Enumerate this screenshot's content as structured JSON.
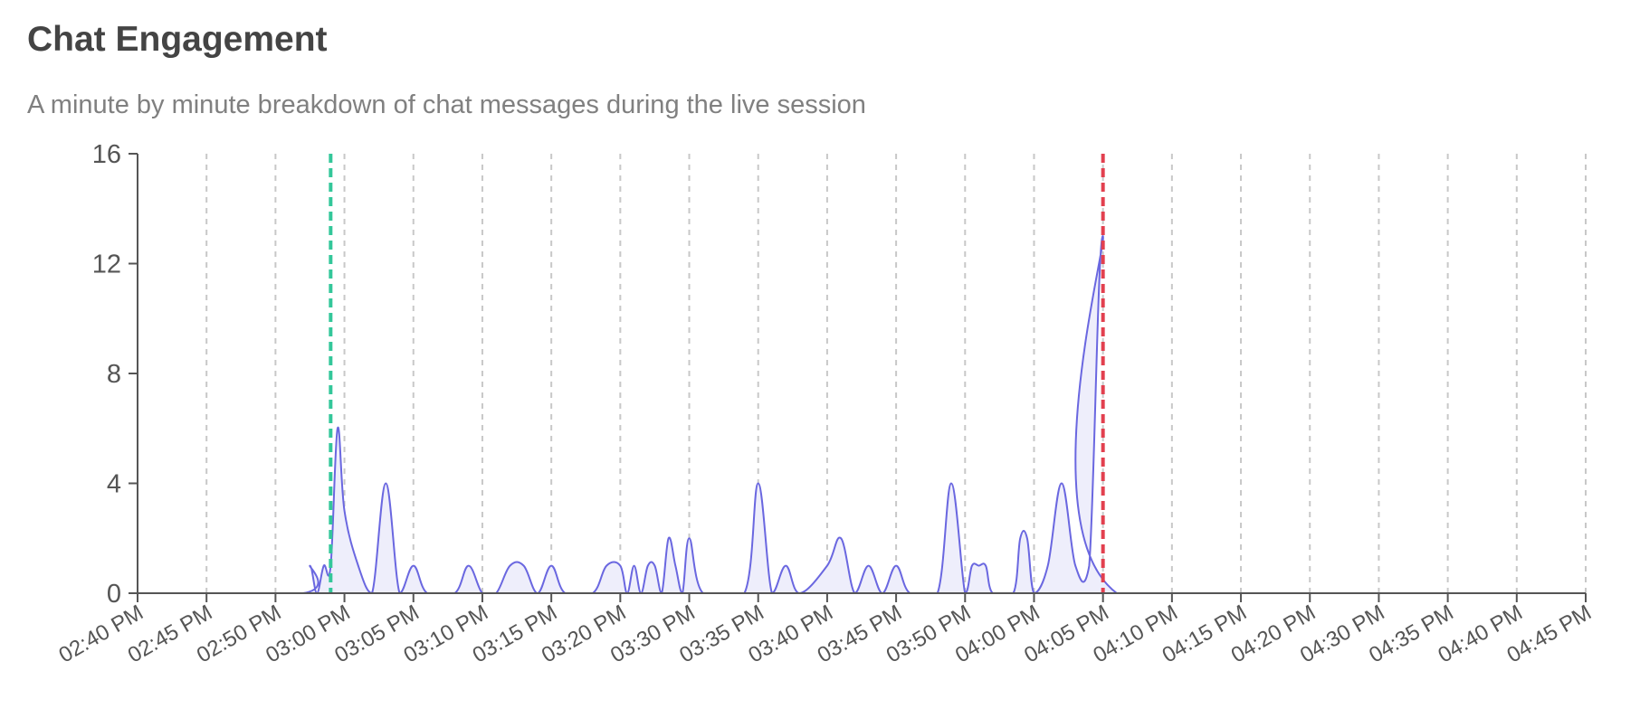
{
  "header": {
    "title": "Chat Engagement",
    "subtitle": "A minute by minute breakdown of chat messages during the live session"
  },
  "colors": {
    "area_line": "#6a67e0",
    "area_fill": "#eeeefb",
    "marker_start": "#34c79a",
    "marker_end": "#e2404f",
    "grid": "#c8c8c8",
    "axis": "#555555"
  },
  "chart_data": {
    "type": "area",
    "title": "",
    "xlabel": "",
    "ylabel": "",
    "x_unit": "minutes",
    "x_range": [
      "02:40 PM",
      "04:45 PM"
    ],
    "ylim": [
      0,
      16
    ],
    "y_ticks": [
      0,
      4,
      8,
      12,
      16
    ],
    "x_ticks": [
      "02:40 PM",
      "02:45 PM",
      "02:50 PM",
      "03:00 PM",
      "03:05 PM",
      "03:10 PM",
      "03:15 PM",
      "03:20 PM",
      "03:30 PM",
      "03:35 PM",
      "03:40 PM",
      "03:45 PM",
      "03:50 PM",
      "04:00 PM",
      "04:05 PM",
      "04:10 PM",
      "04:15 PM",
      "04:20 PM",
      "04:30 PM",
      "04:35 PM",
      "04:40 PM",
      "04:45 PM"
    ],
    "grid": {
      "vertical": true,
      "horizontal": false,
      "style": "dashed"
    },
    "series": [
      {
        "name": "",
        "points": [
          [
            "02:40 PM",
            0
          ],
          [
            "02:54 PM",
            0
          ],
          [
            "02:55 PM",
            1
          ],
          [
            "02:56 PM",
            0
          ],
          [
            "02:57 PM",
            1
          ],
          [
            "02:58 PM",
            1
          ],
          [
            "02:59 PM",
            6
          ],
          [
            "03:00 PM",
            3
          ],
          [
            "03:01 PM",
            1
          ],
          [
            "03:02 PM",
            0
          ],
          [
            "03:03 PM",
            4
          ],
          [
            "03:04 PM",
            0
          ],
          [
            "03:05 PM",
            1
          ],
          [
            "03:06 PM",
            0
          ],
          [
            "03:08 PM",
            0
          ],
          [
            "03:09 PM",
            1
          ],
          [
            "03:10 PM",
            0
          ],
          [
            "03:11 PM",
            0
          ],
          [
            "03:12 PM",
            1
          ],
          [
            "03:13 PM",
            1
          ],
          [
            "03:14 PM",
            0
          ],
          [
            "03:15 PM",
            1
          ],
          [
            "03:16 PM",
            0
          ],
          [
            "03:18 PM",
            0
          ],
          [
            "03:19 PM",
            1
          ],
          [
            "03:20 PM",
            1
          ],
          [
            "03:21 PM",
            0
          ],
          [
            "03:22 PM",
            1
          ],
          [
            "03:23 PM",
            0
          ],
          [
            "03:24 PM",
            1
          ],
          [
            "03:25 PM",
            1
          ],
          [
            "03:26 PM",
            0
          ],
          [
            "03:27 PM",
            2
          ],
          [
            "03:28 PM",
            1
          ],
          [
            "03:29 PM",
            0
          ],
          [
            "03:30 PM",
            2
          ],
          [
            "03:31 PM",
            0
          ],
          [
            "03:34 PM",
            0
          ],
          [
            "03:35 PM",
            4
          ],
          [
            "03:36 PM",
            0
          ],
          [
            "03:37 PM",
            1
          ],
          [
            "03:38 PM",
            0
          ],
          [
            "03:40 PM",
            1
          ],
          [
            "03:41 PM",
            2
          ],
          [
            "03:42 PM",
            0
          ],
          [
            "03:43 PM",
            1
          ],
          [
            "03:44 PM",
            0
          ],
          [
            "03:45 PM",
            1
          ],
          [
            "03:46 PM",
            0
          ],
          [
            "03:48 PM",
            0
          ],
          [
            "03:49 PM",
            4
          ],
          [
            "03:50 PM",
            0
          ],
          [
            "03:51 PM",
            1
          ],
          [
            "03:52 PM",
            1
          ],
          [
            "03:53 PM",
            1
          ],
          [
            "03:54 PM",
            0
          ],
          [
            "03:57 PM",
            0
          ],
          [
            "03:58 PM",
            2
          ],
          [
            "03:59 PM",
            2
          ],
          [
            "04:00 PM",
            0
          ],
          [
            "04:01 PM",
            1
          ],
          [
            "04:02 PM",
            4
          ],
          [
            "04:03 PM",
            1
          ],
          [
            "04:04 PM",
            1
          ],
          [
            "04:05 PM",
            13
          ],
          [
            "04:06 PM",
            0
          ],
          [
            "04:45 PM",
            0
          ]
        ]
      }
    ],
    "markers": [
      {
        "x": "02:58 PM",
        "color": "#34c79a"
      },
      {
        "x": "04:05 PM",
        "color": "#e2404f"
      }
    ]
  }
}
